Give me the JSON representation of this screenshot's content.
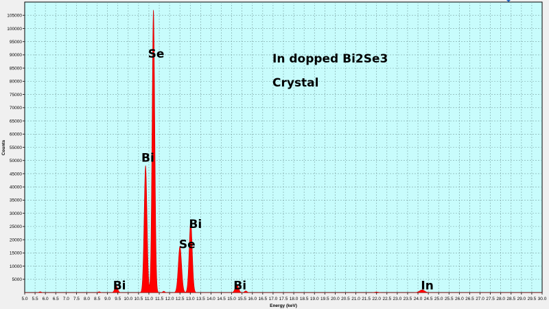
{
  "colors": {
    "plot_background": "#c8fcfc",
    "spectrum_fill": "#ff0000",
    "spectrum_stroke": "#d00000",
    "grid": "#7aa0a0"
  },
  "chart_data": {
    "type": "area",
    "xlabel": "Energy (keV)",
    "ylabel": "Counts",
    "xlim": [
      5.0,
      30.0
    ],
    "ylim": [
      0,
      110000
    ],
    "x_ticks": [
      5.0,
      5.5,
      6.0,
      6.5,
      7.0,
      7.5,
      8.0,
      8.5,
      9.0,
      9.5,
      10.0,
      10.5,
      11.0,
      11.5,
      12.0,
      12.5,
      13.0,
      13.5,
      14.0,
      14.5,
      15.0,
      15.5,
      16.0,
      16.5,
      17.0,
      17.5,
      18.0,
      18.5,
      19.0,
      19.5,
      20.0,
      20.5,
      21.0,
      21.5,
      22.0,
      22.5,
      23.0,
      23.5,
      24.0,
      24.5,
      25.0,
      25.5,
      26.0,
      26.5,
      27.0,
      27.5,
      28.0,
      28.5,
      29.0,
      29.5,
      30.0
    ],
    "y_ticks": [
      5000,
      10000,
      15000,
      20000,
      25000,
      30000,
      35000,
      40000,
      45000,
      50000,
      55000,
      60000,
      65000,
      70000,
      75000,
      80000,
      85000,
      90000,
      95000,
      100000,
      105000
    ],
    "grid": true,
    "peaks": [
      {
        "x": 5.75,
        "y": 300,
        "width": 0.05
      },
      {
        "x": 8.6,
        "y": 300,
        "width": 0.05
      },
      {
        "x": 9.42,
        "y": 2500,
        "width": 0.07
      },
      {
        "x": 10.84,
        "y": 48000,
        "width": 0.07
      },
      {
        "x": 11.22,
        "y": 107000,
        "width": 0.065
      },
      {
        "x": 11.72,
        "y": 500,
        "width": 0.05
      },
      {
        "x": 12.5,
        "y": 17500,
        "width": 0.08
      },
      {
        "x": 13.02,
        "y": 27000,
        "width": 0.075
      },
      {
        "x": 15.25,
        "y": 3000,
        "width": 0.08
      },
      {
        "x": 15.68,
        "y": 600,
        "width": 0.06
      },
      {
        "x": 22.0,
        "y": 200,
        "width": 0.08
      },
      {
        "x": 24.2,
        "y": 1000,
        "width": 0.12
      }
    ],
    "peak_labels": [
      {
        "text": "Se",
        "x": 11.35,
        "y": 89000
      },
      {
        "text": "Bi",
        "x": 10.95,
        "y": 49500
      },
      {
        "text": "Bi",
        "x": 13.25,
        "y": 24500
      },
      {
        "text": "Se",
        "x": 12.85,
        "y": 16800
      },
      {
        "text": "Bi",
        "x": 9.58,
        "y": 1200
      },
      {
        "text": "Bi",
        "x": 15.4,
        "y": 1200
      },
      {
        "text": "In",
        "x": 24.45,
        "y": 1200
      }
    ],
    "annotations": [
      "In dopped Bi2Se3",
      "Crystal"
    ]
  }
}
